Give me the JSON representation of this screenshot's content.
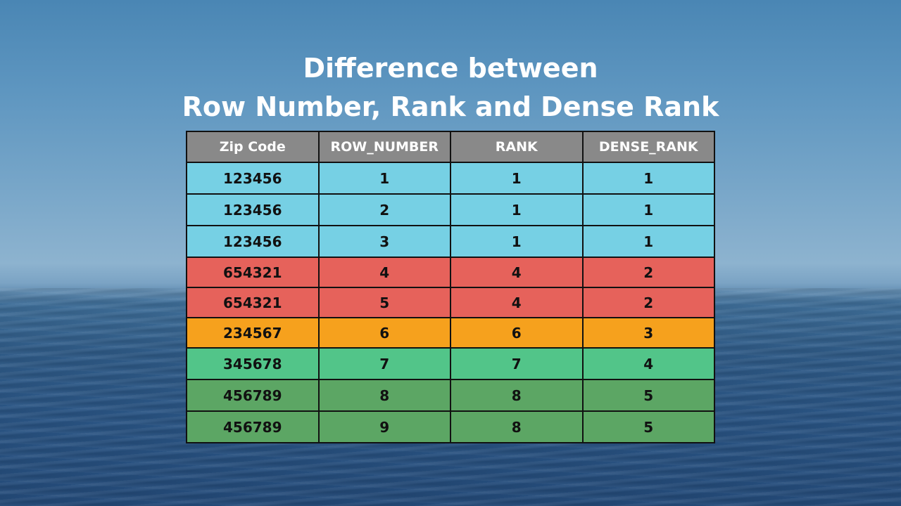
{
  "title": {
    "line1": "Difference between",
    "line2": "Row Number, Rank and Dense Rank"
  },
  "table": {
    "headers": [
      "Zip Code",
      "ROW_NUMBER",
      "RANK",
      "DENSE_RANK"
    ],
    "rows": [
      [
        "123456",
        "1",
        "1",
        "1"
      ],
      [
        "123456",
        "2",
        "1",
        "1"
      ],
      [
        "123456",
        "3",
        "1",
        "1"
      ],
      [
        "654321",
        "4",
        "4",
        "2"
      ],
      [
        "654321",
        "5",
        "4",
        "2"
      ],
      [
        "234567",
        "6",
        "6",
        "3"
      ],
      [
        "345678",
        "7",
        "7",
        "4"
      ],
      [
        "456789",
        "8",
        "8",
        "5"
      ],
      [
        "456789",
        "9",
        "8",
        "5"
      ]
    ],
    "colors": {
      "header": "#898989",
      "blue": "#76d0e4",
      "red": "#e6625b",
      "orange": "#f6a11d",
      "light_green": "#52c589",
      "dark_green": "#5ca664"
    }
  }
}
